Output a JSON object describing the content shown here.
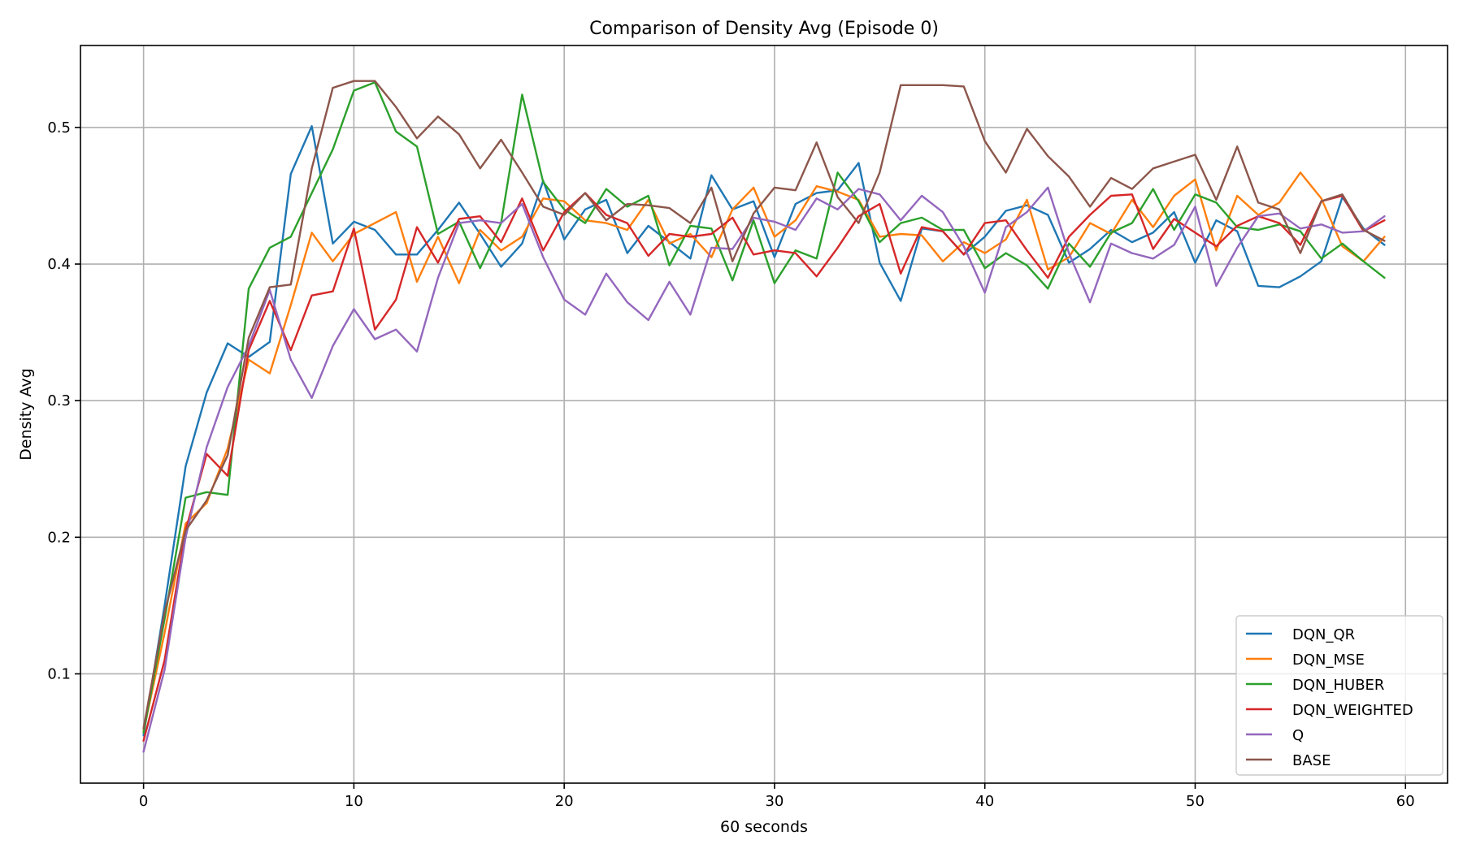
{
  "chart_data": {
    "type": "line",
    "title": "Comparison of Density Avg (Episode 0)",
    "xlabel": "60 seconds",
    "ylabel": "Density Avg",
    "xlim": [
      -3,
      62
    ],
    "ylim": [
      0.02,
      0.56
    ],
    "xticks": [
      0,
      10,
      20,
      30,
      40,
      50,
      60
    ],
    "yticks": [
      0.1,
      0.2,
      0.3,
      0.4,
      0.5
    ],
    "ytick_labels": [
      "0.1",
      "0.2",
      "0.3",
      "0.4",
      "0.5"
    ],
    "grid": true,
    "legend_position": "lower-right",
    "x": [
      0,
      1,
      2,
      3,
      4,
      5,
      6,
      7,
      8,
      9,
      10,
      11,
      12,
      13,
      14,
      15,
      16,
      17,
      18,
      19,
      20,
      21,
      22,
      23,
      24,
      25,
      26,
      27,
      28,
      29,
      30,
      31,
      32,
      33,
      34,
      35,
      36,
      37,
      38,
      39,
      40,
      41,
      42,
      43,
      44,
      45,
      46,
      47,
      48,
      49,
      50,
      51,
      52,
      53,
      54,
      55,
      56,
      57,
      58,
      59
    ],
    "series": [
      {
        "name": "DQN_QR",
        "color": "#1f77b4",
        "values": [
          0.055,
          0.15,
          0.252,
          0.306,
          0.342,
          0.332,
          0.343,
          0.466,
          0.501,
          0.415,
          0.431,
          0.425,
          0.407,
          0.407,
          0.425,
          0.445,
          0.422,
          0.398,
          0.415,
          0.461,
          0.418,
          0.44,
          0.447,
          0.408,
          0.428,
          0.416,
          0.404,
          0.465,
          0.44,
          0.446,
          0.405,
          0.444,
          0.452,
          0.454,
          0.474,
          0.401,
          0.373,
          0.426,
          0.424,
          0.407,
          0.42,
          0.439,
          0.443,
          0.436,
          0.401,
          0.411,
          0.425,
          0.416,
          0.423,
          0.438,
          0.401,
          0.432,
          0.424,
          0.384,
          0.383,
          0.391,
          0.402,
          0.449,
          0.426,
          0.414
        ]
      },
      {
        "name": "DQN_MSE",
        "color": "#ff7f0e",
        "values": [
          0.058,
          0.13,
          0.21,
          0.225,
          0.265,
          0.33,
          0.32,
          0.37,
          0.423,
          0.402,
          0.422,
          0.43,
          0.438,
          0.387,
          0.42,
          0.386,
          0.425,
          0.41,
          0.42,
          0.448,
          0.446,
          0.432,
          0.43,
          0.425,
          0.447,
          0.415,
          0.422,
          0.405,
          0.44,
          0.456,
          0.42,
          0.432,
          0.457,
          0.453,
          0.447,
          0.42,
          0.422,
          0.421,
          0.402,
          0.416,
          0.408,
          0.418,
          0.447,
          0.396,
          0.405,
          0.43,
          0.422,
          0.447,
          0.427,
          0.45,
          0.462,
          0.41,
          0.45,
          0.436,
          0.445,
          0.467,
          0.448,
          0.413,
          0.402,
          0.42
        ]
      },
      {
        "name": "DQN_HUBER",
        "color": "#2ca02c",
        "values": [
          0.057,
          0.14,
          0.229,
          0.233,
          0.231,
          0.382,
          0.412,
          0.42,
          0.452,
          0.484,
          0.527,
          0.533,
          0.497,
          0.486,
          0.422,
          0.431,
          0.397,
          0.43,
          0.524,
          0.46,
          0.44,
          0.43,
          0.455,
          0.442,
          0.45,
          0.399,
          0.428,
          0.426,
          0.388,
          0.432,
          0.386,
          0.41,
          0.404,
          0.467,
          0.446,
          0.416,
          0.43,
          0.434,
          0.425,
          0.425,
          0.397,
          0.408,
          0.399,
          0.382,
          0.415,
          0.398,
          0.423,
          0.43,
          0.455,
          0.425,
          0.451,
          0.445,
          0.427,
          0.425,
          0.429,
          0.424,
          0.404,
          0.415,
          0.402,
          0.39
        ]
      },
      {
        "name": "DQN_WEIGHTED",
        "color": "#d62728",
        "values": [
          0.051,
          0.11,
          0.205,
          0.261,
          0.245,
          0.337,
          0.373,
          0.337,
          0.377,
          0.38,
          0.426,
          0.352,
          0.374,
          0.427,
          0.401,
          0.433,
          0.435,
          0.416,
          0.448,
          0.41,
          0.438,
          0.452,
          0.436,
          0.43,
          0.406,
          0.422,
          0.42,
          0.422,
          0.434,
          0.407,
          0.41,
          0.408,
          0.391,
          0.412,
          0.435,
          0.444,
          0.393,
          0.427,
          0.424,
          0.407,
          0.43,
          0.432,
          0.41,
          0.39,
          0.42,
          0.436,
          0.45,
          0.451,
          0.411,
          0.433,
          0.423,
          0.413,
          0.428,
          0.435,
          0.43,
          0.414,
          0.446,
          0.45,
          0.424,
          0.432
        ]
      },
      {
        "name": "Q",
        "color": "#9467bd",
        "values": [
          0.043,
          0.103,
          0.2,
          0.266,
          0.31,
          0.34,
          0.381,
          0.33,
          0.302,
          0.34,
          0.367,
          0.345,
          0.352,
          0.336,
          0.39,
          0.43,
          0.432,
          0.43,
          0.444,
          0.405,
          0.374,
          0.363,
          0.393,
          0.372,
          0.359,
          0.387,
          0.363,
          0.412,
          0.411,
          0.434,
          0.431,
          0.425,
          0.448,
          0.44,
          0.455,
          0.451,
          0.432,
          0.45,
          0.438,
          0.413,
          0.379,
          0.427,
          0.438,
          0.456,
          0.408,
          0.372,
          0.415,
          0.408,
          0.404,
          0.414,
          0.442,
          0.384,
          0.412,
          0.435,
          0.437,
          0.426,
          0.429,
          0.423,
          0.424,
          0.435
        ]
      },
      {
        "name": "BASE",
        "color": "#8c564b",
        "values": [
          0.06,
          0.145,
          0.205,
          0.227,
          0.26,
          0.346,
          0.383,
          0.385,
          0.47,
          0.529,
          0.534,
          0.534,
          0.515,
          0.492,
          0.508,
          0.495,
          0.47,
          0.491,
          0.467,
          0.442,
          0.436,
          0.452,
          0.432,
          0.444,
          0.443,
          0.441,
          0.43,
          0.456,
          0.402,
          0.437,
          0.456,
          0.454,
          0.489,
          0.449,
          0.43,
          0.467,
          0.531,
          0.531,
          0.531,
          0.53,
          0.49,
          0.467,
          0.499,
          0.479,
          0.464,
          0.442,
          0.463,
          0.455,
          0.47,
          0.475,
          0.48,
          0.447,
          0.486,
          0.445,
          0.44,
          0.408,
          0.446,
          0.451,
          0.425,
          0.417
        ]
      }
    ]
  }
}
